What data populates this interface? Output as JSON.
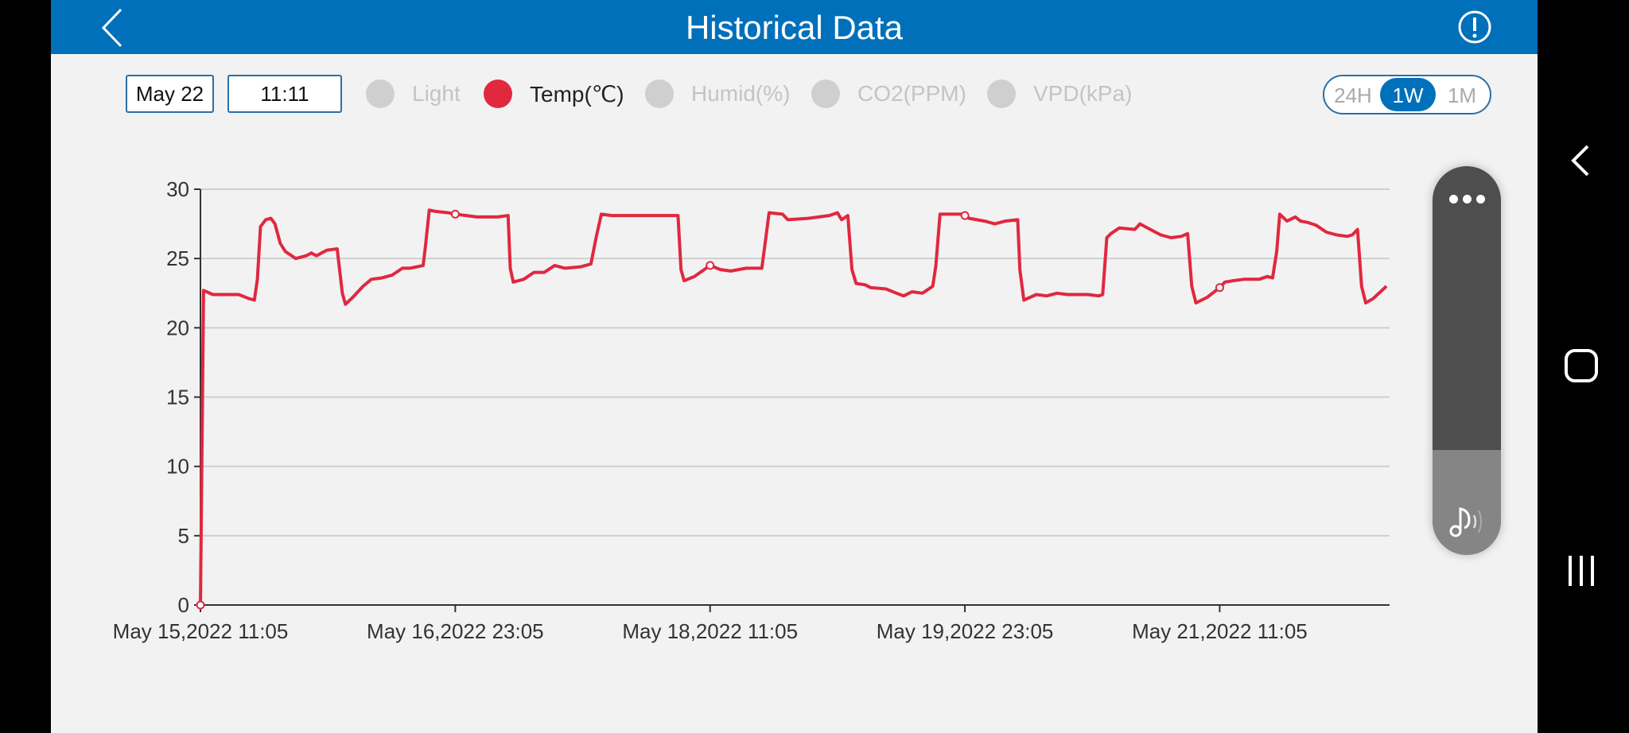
{
  "header": {
    "title": "Historical Data",
    "back_icon": "chevron-left-icon",
    "info_icon": "exclamation-circle-icon"
  },
  "controls": {
    "date": "May 22",
    "time": "11:11"
  },
  "legend": [
    {
      "label": "Light",
      "active": false
    },
    {
      "label": "Temp(℃)",
      "active": true,
      "color": "#e0283f"
    },
    {
      "label": "Humid(%)",
      "active": false
    },
    {
      "label": "CO2(PPM)",
      "active": false
    },
    {
      "label": "VPD(kPa)",
      "active": false
    }
  ],
  "range": {
    "options": [
      "24H",
      "1W",
      "1M"
    ],
    "selected": "1W"
  },
  "colors": {
    "header": "#0070ba",
    "series": "#e0283f",
    "inactive": "#cfcfcf"
  },
  "side_panel": {
    "menu_icon": "more-horizontal-icon",
    "sound_icon": "music-note-sound-icon",
    "level": 0.27
  },
  "system_nav": {
    "back": "chevron-left-icon",
    "home": "home-square-icon",
    "recents": "recents-bars-icon"
  },
  "chart_data": {
    "type": "line",
    "title": "",
    "xlabel": "",
    "ylabel": "",
    "xlim": [
      "2022-05-15 11:05",
      "2022-05-22 11:05"
    ],
    "ylim": [
      0,
      30
    ],
    "yticks": [
      0,
      5,
      10,
      15,
      20,
      25,
      30
    ],
    "xticks": [
      {
        "x": "2022-05-15 11:05",
        "label": "May 15,2022 11:05"
      },
      {
        "x": "2022-05-16 23:05",
        "label": "May 16,2022 23:05"
      },
      {
        "x": "2022-05-18 11:05",
        "label": "May 18,2022 11:05"
      },
      {
        "x": "2022-05-19 23:05",
        "label": "May 19,2022 23:05"
      },
      {
        "x": "2022-05-21 11:05",
        "label": "May 21,2022 11:05"
      }
    ],
    "grid": true,
    "series": [
      {
        "name": "Temp(℃)",
        "color": "#e0283f",
        "markers_at_xticks": true,
        "points": [
          [
            "2022-05-15 11:05",
            0
          ],
          [
            "2022-05-15 11:31",
            22.7
          ],
          [
            "2022-05-15 12:50",
            22.4
          ],
          [
            "2022-05-15 16:30",
            22.4
          ],
          [
            "2022-05-15 17:58",
            22.1
          ],
          [
            "2022-05-15 18:42",
            22.0
          ],
          [
            "2022-05-15 19:08",
            23.5
          ],
          [
            "2022-05-15 19:34",
            27.3
          ],
          [
            "2022-05-15 20:18",
            27.8
          ],
          [
            "2022-05-15 21:02",
            27.9
          ],
          [
            "2022-05-15 21:37",
            27.5
          ],
          [
            "2022-05-15 22:21",
            26.1
          ],
          [
            "2022-05-15 23:05",
            25.5
          ],
          [
            "2022-05-16 00:33",
            25.0
          ],
          [
            "2022-05-16 02:01",
            25.2
          ],
          [
            "2022-05-16 02:45",
            25.4
          ],
          [
            "2022-05-16 03:28",
            25.2
          ],
          [
            "2022-05-16 04:56",
            25.6
          ],
          [
            "2022-05-16 06:24",
            25.7
          ],
          [
            "2022-05-16 07:08",
            22.5
          ],
          [
            "2022-05-16 07:34",
            21.7
          ],
          [
            "2022-05-16 08:36",
            22.2
          ],
          [
            "2022-05-16 10:04",
            23.0
          ],
          [
            "2022-05-16 11:14",
            23.5
          ],
          [
            "2022-05-16 12:42",
            23.6
          ],
          [
            "2022-05-16 14:09",
            23.8
          ],
          [
            "2022-05-16 15:37",
            24.3
          ],
          [
            "2022-05-16 16:39",
            24.3
          ],
          [
            "2022-05-16 18:33",
            24.5
          ],
          [
            "2022-05-16 18:51",
            25.8
          ],
          [
            "2022-05-16 19:25",
            28.5
          ],
          [
            "2022-05-16 20:18",
            28.4
          ],
          [
            "2022-05-16 22:04",
            28.3
          ],
          [
            "2022-05-16 23:05",
            28.2
          ],
          [
            "2022-05-17 02:09",
            28.0
          ],
          [
            "2022-05-17 05:05",
            28.0
          ],
          [
            "2022-05-17 06:33",
            28.1
          ],
          [
            "2022-05-17 06:51",
            24.3
          ],
          [
            "2022-05-17 07:17",
            23.3
          ],
          [
            "2022-05-17 08:45",
            23.5
          ],
          [
            "2022-05-17 10:12",
            24.0
          ],
          [
            "2022-05-17 11:40",
            24.0
          ],
          [
            "2022-05-17 13:08",
            24.5
          ],
          [
            "2022-05-17 14:36",
            24.3
          ],
          [
            "2022-05-17 16:48",
            24.4
          ],
          [
            "2022-05-17 18:15",
            24.6
          ],
          [
            "2022-05-17 18:59",
            26.5
          ],
          [
            "2022-05-17 19:43",
            28.2
          ],
          [
            "2022-05-17 21:11",
            28.1
          ],
          [
            "2022-05-18 00:06",
            28.1
          ],
          [
            "2022-05-18 03:02",
            28.1
          ],
          [
            "2022-05-18 06:33",
            28.1
          ],
          [
            "2022-05-18 06:59",
            24.2
          ],
          [
            "2022-05-18 07:25",
            23.4
          ],
          [
            "2022-05-18 08:53",
            23.7
          ],
          [
            "2022-05-18 11:05",
            24.5
          ],
          [
            "2022-05-18 12:33",
            24.2
          ],
          [
            "2022-05-18 14:01",
            24.1
          ],
          [
            "2022-05-18 16:12",
            24.3
          ],
          [
            "2022-05-18 18:24",
            24.3
          ],
          [
            "2022-05-18 18:50",
            26.0
          ],
          [
            "2022-05-18 19:25",
            28.3
          ],
          [
            "2022-05-18 21:19",
            28.2
          ],
          [
            "2022-05-18 22:04",
            27.8
          ],
          [
            "2022-05-19 00:59",
            27.9
          ],
          [
            "2022-05-19 03:55",
            28.1
          ],
          [
            "2022-05-19 05:05",
            28.3
          ],
          [
            "2022-05-19 05:40",
            27.8
          ],
          [
            "2022-05-19 06:33",
            28.1
          ],
          [
            "2022-05-19 07:08",
            24.2
          ],
          [
            "2022-05-19 07:43",
            23.2
          ],
          [
            "2022-05-19 09:02",
            23.1
          ],
          [
            "2022-05-19 09:46",
            22.9
          ],
          [
            "2022-05-19 11:58",
            22.8
          ],
          [
            "2022-05-19 13:25",
            22.5
          ],
          [
            "2022-05-19 14:27",
            22.3
          ],
          [
            "2022-05-19 15:37",
            22.6
          ],
          [
            "2022-05-19 17:05",
            22.5
          ],
          [
            "2022-05-19 18:33",
            23.0
          ],
          [
            "2022-05-19 18:59",
            24.5
          ],
          [
            "2022-05-19 19:34",
            28.2
          ],
          [
            "2022-05-19 22:56",
            28.2
          ],
          [
            "2022-05-19 23:05",
            28.1
          ],
          [
            "2022-05-19 23:40",
            27.9
          ],
          [
            "2022-05-20 01:52",
            27.7
          ],
          [
            "2022-05-20 03:19",
            27.5
          ],
          [
            "2022-05-20 04:48",
            27.7
          ],
          [
            "2022-05-20 06:33",
            27.8
          ],
          [
            "2022-05-20 06:51",
            24.2
          ],
          [
            "2022-05-20 07:25",
            22.0
          ],
          [
            "2022-05-20 09:11",
            22.4
          ],
          [
            "2022-05-20 10:39",
            22.3
          ],
          [
            "2022-05-20 12:06",
            22.5
          ],
          [
            "2022-05-20 13:34",
            22.4
          ],
          [
            "2022-05-20 15:02",
            22.4
          ],
          [
            "2022-05-20 16:30",
            22.4
          ],
          [
            "2022-05-20 17:58",
            22.3
          ],
          [
            "2022-05-20 18:33",
            22.4
          ],
          [
            "2022-05-20 19:08",
            26.5
          ],
          [
            "2022-05-20 19:43",
            26.8
          ],
          [
            "2022-05-20 20:53",
            27.2
          ],
          [
            "2022-05-20 23:05",
            27.1
          ],
          [
            "2022-05-20 23:49",
            27.5
          ],
          [
            "2022-05-21 01:17",
            27.1
          ],
          [
            "2022-05-21 02:45",
            26.7
          ],
          [
            "2022-05-21 04:12",
            26.5
          ],
          [
            "2022-05-21 05:40",
            26.6
          ],
          [
            "2022-05-21 06:33",
            26.8
          ],
          [
            "2022-05-21 07:08",
            23.0
          ],
          [
            "2022-05-21 07:43",
            21.8
          ],
          [
            "2022-05-21 09:19",
            22.2
          ],
          [
            "2022-05-21 11:05",
            22.9
          ],
          [
            "2022-05-21 11:49",
            23.3
          ],
          [
            "2022-05-21 12:59",
            23.4
          ],
          [
            "2022-05-21 14:27",
            23.5
          ],
          [
            "2022-05-21 16:39",
            23.5
          ],
          [
            "2022-05-21 17:49",
            23.7
          ],
          [
            "2022-05-21 18:33",
            23.6
          ],
          [
            "2022-05-21 19:08",
            25.5
          ],
          [
            "2022-05-21 19:34",
            28.2
          ],
          [
            "2022-05-21 20:36",
            27.7
          ],
          [
            "2022-05-21 21:46",
            28.0
          ],
          [
            "2022-05-21 22:30",
            27.7
          ],
          [
            "2022-05-21 23:31",
            27.6
          ],
          [
            "2022-05-22 00:42",
            27.4
          ],
          [
            "2022-05-22 02:09",
            26.9
          ],
          [
            "2022-05-22 03:37",
            26.7
          ],
          [
            "2022-05-22 05:05",
            26.6
          ],
          [
            "2022-05-22 05:49",
            26.7
          ],
          [
            "2022-05-22 06:33",
            27.1
          ],
          [
            "2022-05-22 07:08",
            23.0
          ],
          [
            "2022-05-22 07:43",
            21.8
          ],
          [
            "2022-05-22 08:45",
            22.1
          ],
          [
            "2022-05-22 10:39",
            23.0
          ]
        ]
      }
    ]
  }
}
